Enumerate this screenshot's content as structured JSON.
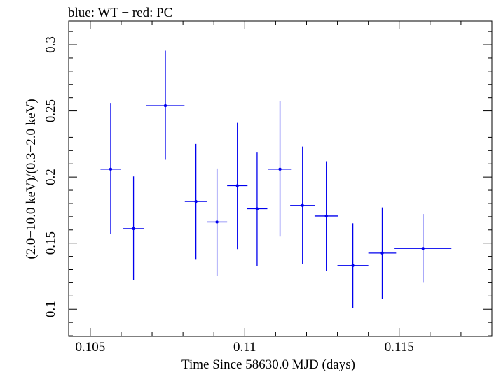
{
  "chart_data": {
    "type": "scatter",
    "title": "blue: WT − red: PC",
    "xlabel": "Time Since 58630.0 MJD (days)",
    "ylabel": "(2.0−10.0 keV)/(0.3−2.0 keV)",
    "xlim": [
      0.1043,
      0.118
    ],
    "ylim": [
      0.0795,
      0.318
    ],
    "x_ticks": [
      {
        "value": 0.105,
        "label": "0.105"
      },
      {
        "value": 0.11,
        "label": "0.11"
      },
      {
        "value": 0.115,
        "label": "0.115"
      }
    ],
    "y_ticks": [
      {
        "value": 0.1,
        "label": "0.1"
      },
      {
        "value": 0.15,
        "label": "0.15"
      },
      {
        "value": 0.2,
        "label": "0.2"
      },
      {
        "value": 0.25,
        "label": "0.25"
      },
      {
        "value": 0.3,
        "label": "0.3"
      }
    ],
    "grid": false,
    "series": [
      {
        "color": "#0000ee",
        "points": [
          {
            "x": 0.10566,
            "xerr": 0.00033,
            "y": 0.206,
            "ylo": 0.157,
            "yhi": 0.2555
          },
          {
            "x": 0.1064,
            "xerr": 0.00033,
            "y": 0.161,
            "ylo": 0.122,
            "yhi": 0.2005
          },
          {
            "x": 0.10743,
            "xerr": 0.00062,
            "y": 0.254,
            "ylo": 0.213,
            "yhi": 0.2955
          },
          {
            "x": 0.10842,
            "xerr": 0.00036,
            "y": 0.1815,
            "ylo": 0.1375,
            "yhi": 0.225
          },
          {
            "x": 0.1091,
            "xerr": 0.00033,
            "y": 0.166,
            "ylo": 0.1255,
            "yhi": 0.2065
          },
          {
            "x": 0.10976,
            "xerr": 0.00033,
            "y": 0.1935,
            "ylo": 0.1455,
            "yhi": 0.241
          },
          {
            "x": 0.1104,
            "xerr": 0.00033,
            "y": 0.176,
            "ylo": 0.1325,
            "yhi": 0.2185
          },
          {
            "x": 0.11114,
            "xerr": 0.00038,
            "y": 0.206,
            "ylo": 0.155,
            "yhi": 0.2575
          },
          {
            "x": 0.11187,
            "xerr": 0.0004,
            "y": 0.1785,
            "ylo": 0.1345,
            "yhi": 0.223
          },
          {
            "x": 0.11264,
            "xerr": 0.00038,
            "y": 0.1705,
            "ylo": 0.129,
            "yhi": 0.212
          },
          {
            "x": 0.1135,
            "xerr": 0.0005,
            "y": 0.133,
            "ylo": 0.101,
            "yhi": 0.165
          },
          {
            "x": 0.11445,
            "xerr": 0.00045,
            "y": 0.1425,
            "ylo": 0.1075,
            "yhi": 0.177
          },
          {
            "x": 0.11577,
            "xerr": 0.00092,
            "y": 0.146,
            "ylo": 0.12,
            "yhi": 0.172
          }
        ]
      }
    ]
  }
}
